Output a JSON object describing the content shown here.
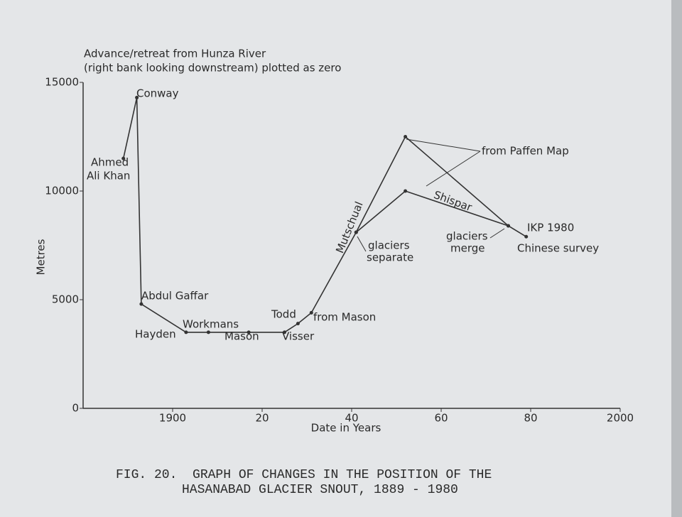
{
  "chart_data": {
    "type": "line",
    "title": [
      "FIG. 20.  GRAPH OF CHANGES IN THE POSITION OF THE",
      "HASANABAD GLACIER SNOUT, 1889 - 1980"
    ],
    "subtitle": [
      "Advance/retreat from Hunza River",
      "(right bank looking downstream) plotted as zero"
    ],
    "x_label": "Date in Years",
    "y_label": "Metres",
    "xlim": [
      1880,
      2000
    ],
    "xticks": [
      1900,
      {
        "value": 1920,
        "label": "20"
      },
      {
        "value": 1940,
        "label": "40"
      },
      {
        "value": 1960,
        "label": "60"
      },
      {
        "value": 1980,
        "label": "80"
      },
      2000
    ],
    "ylim": [
      0,
      15000
    ],
    "yticks": [
      0,
      5000,
      10000,
      15000
    ],
    "color": "#333333",
    "series": [
      {
        "x": [
          1889,
          1892,
          1893,
          1903,
          1908,
          1917,
          1925,
          1928,
          1931,
          1941,
          1952,
          1975,
          1979
        ],
        "values": [
          11500,
          14300,
          4800,
          3500,
          3500,
          3500,
          3500,
          3900,
          4400,
          8100,
          12500,
          8400,
          7900
        ]
      },
      {
        "x": [
          1941,
          1952,
          1975
        ],
        "values": [
          8100,
          10000,
          8400
        ]
      }
    ],
    "annotations": [
      "Ahmed",
      "Ali Khan",
      "Conway",
      "Abdul Gaffar",
      "Hayden",
      "Workmans",
      "Mason",
      "Visser",
      "Todd",
      "from Mason",
      "Mutschual",
      "glaciers",
      "separate",
      "from Paffen Map",
      "Shispar",
      "glaciers",
      "merge",
      "IKP 1980",
      "Chinese survey"
    ]
  }
}
